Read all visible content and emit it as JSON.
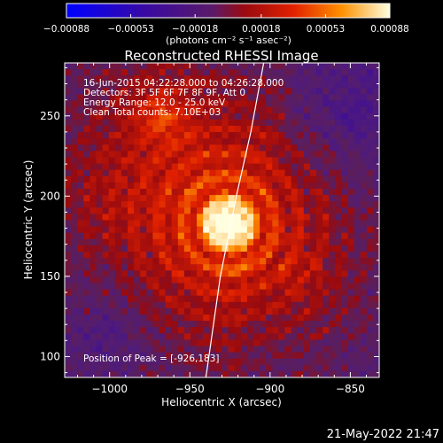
{
  "chart_data": {
    "type": "heatmap",
    "title": "Reconstructed RHESSI Image",
    "xlabel": "Heliocentric X (arcsec)",
    "ylabel": "Heliocentric Y (arcsec)",
    "xlim": [
      -1028,
      -832
    ],
    "ylim": [
      87,
      283
    ],
    "x_ticks": [
      -1000,
      -950,
      -900,
      -850
    ],
    "x_tick_labels": [
      "−1000",
      "−950",
      "−900",
      "−850"
    ],
    "y_ticks": [
      100,
      150,
      200,
      250
    ],
    "y_tick_labels": [
      "100",
      "150",
      "200",
      "250"
    ],
    "colorbar": {
      "range": [
        -0.00088,
        0.00088
      ],
      "ticks": [
        -0.00088,
        -0.00053,
        -0.00018,
        0.00018,
        0.00053,
        0.00088
      ],
      "tick_labels": [
        "−0.00088",
        "−0.00053",
        "−0.00018",
        "0.00018",
        "0.00053",
        "0.00088"
      ],
      "unit_label": "(photons cm⁻² s⁻¹ asec⁻²)"
    },
    "annotations": [
      "16-Jun-2015 04:22:28.000 to 04:26:28.000",
      "Detectors: 3F 5F 6F 7F 8F 9F, Att 0",
      "Energy Range: 12.0 - 25.0 keV",
      "Clean    Total counts: 7.10E+03"
    ],
    "peak_label": "Position of Peak = [-926,183]",
    "peak": {
      "x": -926,
      "y": 183
    },
    "limb_points": [
      [
        -940,
        87
      ],
      [
        -931,
        150
      ],
      [
        -921,
        200
      ],
      [
        -912,
        240
      ],
      [
        -904,
        283
      ]
    ],
    "grid": false
  },
  "footer": {
    "timestamp": "21-May-2022 21:47"
  }
}
